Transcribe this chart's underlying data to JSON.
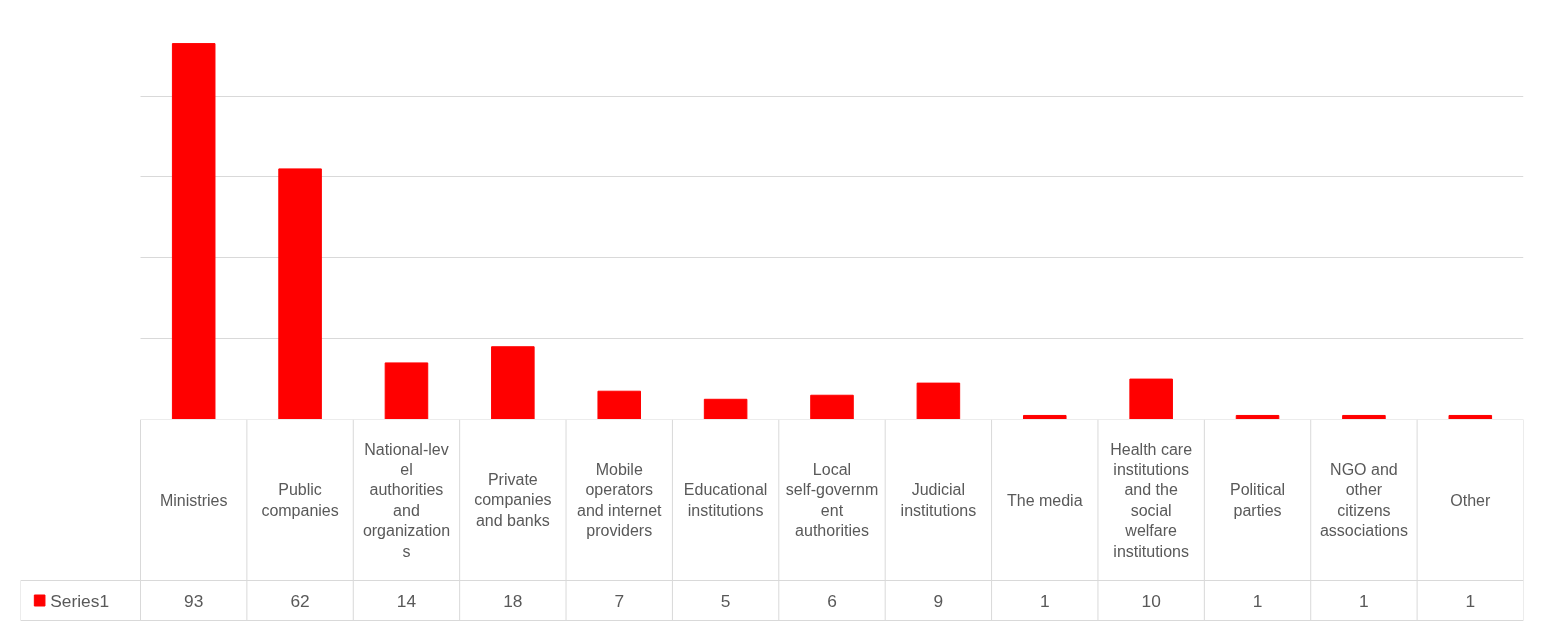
{
  "chart_data": {
    "type": "bar",
    "categories": [
      "Ministries",
      "Public companies",
      "National-level authorities and organizations",
      "Private companies and banks",
      "Mobile operators and internet providers",
      "Educational institutions",
      "Local self-government authorities",
      "Judicial institutions",
      "The media",
      "Health care institutions and the social welfare institutions",
      "Political parties",
      "NGO and other citizens associations",
      "Other"
    ],
    "series": [
      {
        "name": "Series1",
        "color": "#ff0000",
        "values": [
          93,
          62,
          14,
          18,
          7,
          5,
          6,
          9,
          1,
          10,
          1,
          1,
          1
        ]
      }
    ],
    "grid": "y",
    "data_labels": true,
    "tick_labels": "x",
    "legend": "bottom"
  }
}
